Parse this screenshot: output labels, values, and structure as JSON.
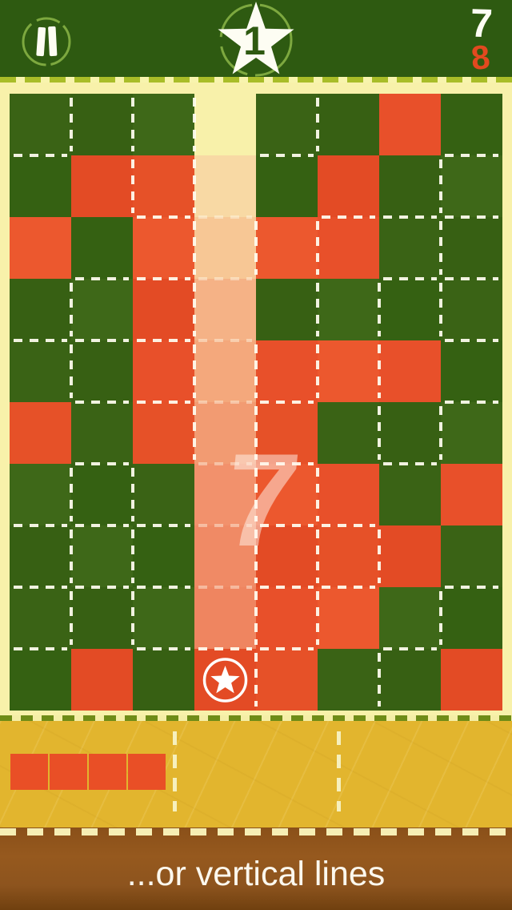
{
  "header": {
    "level": {
      "value": "1"
    },
    "score": {
      "current": "7",
      "target": "8"
    }
  },
  "board": {
    "rows": 10,
    "cols": 8,
    "cells": [
      "gggXggog",
      "gooOgogg",
      "ogoOoogg",
      "ggoOgggg",
      "ggoOooog",
      "ogoOoggg",
      "gggOoogo",
      "gggOooog",
      "gggOoogg",
      "gogSoggo"
    ],
    "cell_legend": {
      "g": "green-tile",
      "o": "orange-tile",
      "O": "ghost-preview-orange",
      "X": "ghost-preview-empty",
      "S": "orange-tile-with-star-marker"
    },
    "ghost_column": 4,
    "ghost_row_colors": [
      "#f8f1aa",
      "#f8d9a4",
      "#f7c795",
      "#f5b286",
      "#f4a87c",
      "#f29b72",
      "#f2916c",
      "#f08a65",
      "#ef8560",
      "#e8502a"
    ],
    "ghost_count_label": "7",
    "striped_cells": [
      [
        3,
        6
      ],
      [
        4,
        6
      ],
      [
        4,
        7
      ],
      [
        5,
        5
      ],
      [
        6,
        1
      ],
      [
        9,
        6
      ]
    ]
  },
  "tray": {
    "slots": [
      {
        "piece": {
          "type": "horizontal-line",
          "cells": 4,
          "color": "#e94f26"
        }
      },
      {
        "piece": null
      },
      {
        "piece": null
      }
    ]
  },
  "footer": {
    "tutorial_text": "...or vertical lines"
  },
  "colors": {
    "hud_green": "#2e5a11",
    "tile_green": "#3a6315",
    "tile_orange": "#e8502a",
    "page_bg": "#f8f1aa",
    "tray_gold": "#e2b52e",
    "banner_brown": "#8f551d",
    "stitch_cream": "#fffdf0",
    "score_target_orange": "#e2491f",
    "sketch_circle_green": "#7da83f"
  }
}
